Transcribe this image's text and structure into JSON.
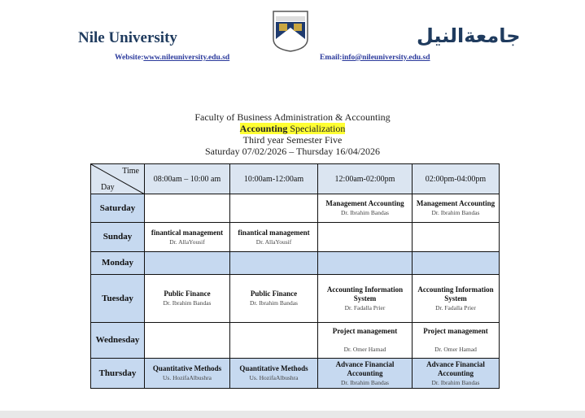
{
  "header": {
    "university_en": "Nile University",
    "university_ar": "جامعةالنيل",
    "website_label": "Website:",
    "website": "www.nileuniversity.edu.sd",
    "email_label": "Email:",
    "email": "info@nileuniversity.edu.sd"
  },
  "titles": {
    "faculty": "Faculty of Business Administration & Accounting",
    "spec_bold": "Accounting",
    "spec_rest": " Specialization",
    "year": "Third year Semester Five",
    "dates": "Saturday 07/02/2026 – Thursday 16/04/2026"
  },
  "table": {
    "corner_time": "Time",
    "corner_day": "Day",
    "slots": [
      "08:00am – 10:00 am",
      "10:00am-12:00am",
      "12:00am-02:00pm",
      "02:00pm-04:00pm"
    ],
    "rows": [
      {
        "day": "Saturday",
        "cells": [
          {
            "course": "",
            "inst": ""
          },
          {
            "course": "",
            "inst": ""
          },
          {
            "course": "Management Accounting",
            "inst": "Dr. Ibrahim Bandas"
          },
          {
            "course": "Management Accounting",
            "inst": "Dr. Ibrahim Bandas"
          }
        ]
      },
      {
        "day": "Sunday",
        "cells": [
          {
            "course": "finantical management",
            "inst": "Dr. AllaYousif"
          },
          {
            "course": "finantical management",
            "inst": "Dr. AllaYousif"
          },
          {
            "course": "",
            "inst": ""
          },
          {
            "course": "",
            "inst": ""
          }
        ]
      },
      {
        "day": "Monday",
        "cells": [
          {
            "course": "",
            "inst": ""
          },
          {
            "course": "",
            "inst": ""
          },
          {
            "course": "",
            "inst": ""
          },
          {
            "course": "",
            "inst": ""
          }
        ]
      },
      {
        "day": "Tuesday",
        "cells": [
          {
            "course": "Public Finance",
            "inst": "Dr. Ibrahim Bandas"
          },
          {
            "course": "Public Finance",
            "inst": "Dr. Ibrahim Bandas"
          },
          {
            "course": "Accounting Information System",
            "inst": "Dr. Fadalla Prier"
          },
          {
            "course": "Accounting Information System",
            "inst": "Dr. Fadalla Prier"
          }
        ]
      },
      {
        "day": "Wednesday",
        "cells": [
          {
            "course": "",
            "inst": ""
          },
          {
            "course": "",
            "inst": ""
          },
          {
            "course": "Project management",
            "inst": "Dr. Omer Hamad"
          },
          {
            "course": "Project management",
            "inst": "Dr. Omer Hamad"
          }
        ]
      },
      {
        "day": "Thursday",
        "cells": [
          {
            "course": "Quantitative Methods",
            "inst": "Us. HozifaAlbushra"
          },
          {
            "course": "Quantitative Methods",
            "inst": "Us. HozifaAlbushra"
          },
          {
            "course": "Advance Financial Accounting",
            "inst": "Dr. Ibrahim Bandas"
          },
          {
            "course": "Advance Financial Accounting",
            "inst": "Dr. Ibrahim Bandas"
          }
        ]
      }
    ]
  }
}
